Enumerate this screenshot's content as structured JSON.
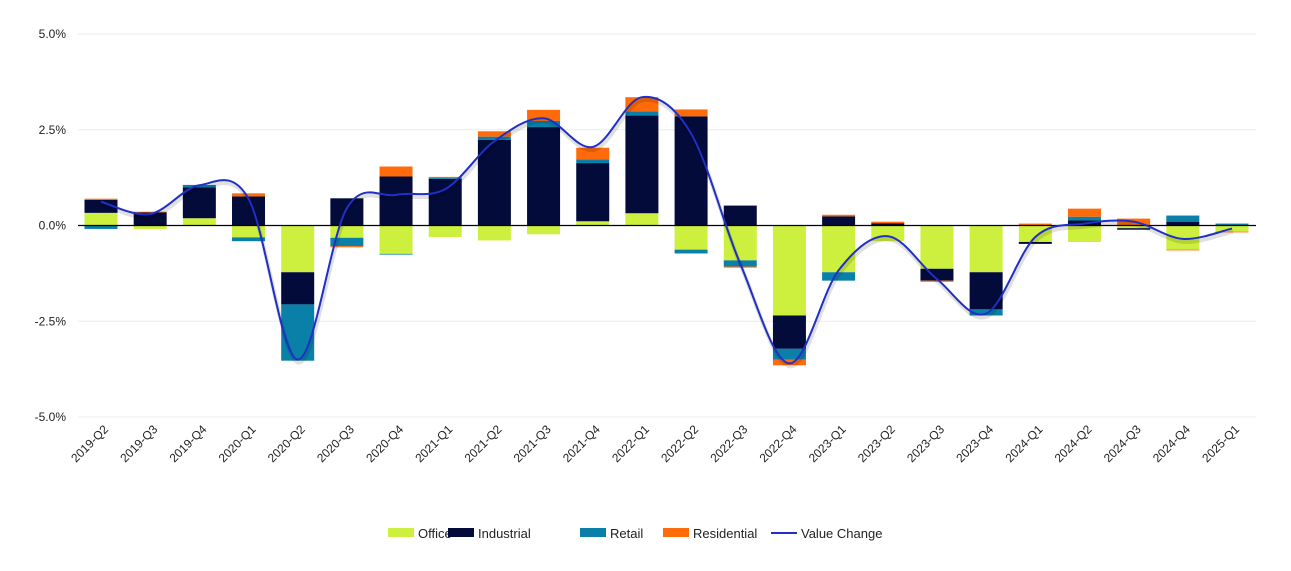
{
  "chart_data": {
    "type": "bar",
    "stacked": true,
    "title": "",
    "xlabel": "",
    "ylabel": "",
    "ylim": [
      -5.0,
      5.0
    ],
    "yticks": [
      "5.0%",
      "2.5%",
      "0.0%",
      "-2.5%",
      "-5.0%"
    ],
    "ytick_values": [
      5.0,
      2.5,
      0.0,
      -2.5,
      -5.0
    ],
    "grid": true,
    "legend_position": "bottom",
    "categories": [
      "2019-Q2",
      "2019-Q3",
      "2019-Q4",
      "2020-Q1",
      "2020-Q2",
      "2020-Q3",
      "2020-Q4",
      "2021-Q1",
      "2021-Q2",
      "2021-Q3",
      "2021-Q4",
      "2022-Q1",
      "2022-Q2",
      "2022-Q3",
      "2022-Q4",
      "2023-Q1",
      "2023-Q2",
      "2023-Q3",
      "2023-Q4",
      "2024-Q1",
      "2024-Q2",
      "2024-Q3",
      "2024-Q4",
      "2025-Q1"
    ],
    "series": [
      {
        "name": "Office",
        "type": "bar",
        "color": "#cdf03f",
        "values": [
          0.33,
          -0.09,
          0.19,
          -0.31,
          -1.22,
          -0.32,
          -0.74,
          -0.3,
          -0.39,
          -0.23,
          0.11,
          0.32,
          -0.63,
          -0.91,
          -2.35,
          -1.22,
          -0.41,
          -1.13,
          -1.22,
          -0.43,
          -0.43,
          -0.07,
          -0.63,
          -0.16
        ]
      },
      {
        "name": "Industrial",
        "type": "bar",
        "color": "#020b3a",
        "values": [
          0.34,
          0.34,
          0.81,
          0.76,
          -0.84,
          0.71,
          1.28,
          1.22,
          2.24,
          2.57,
          1.52,
          2.55,
          2.85,
          0.52,
          -0.87,
          0.24,
          0.06,
          -0.31,
          -0.97,
          -0.05,
          0.13,
          -0.04,
          0.1,
          0.0
        ]
      },
      {
        "name": "Retail",
        "type": "bar",
        "color": "#0a80a8",
        "values": [
          -0.09,
          0.0,
          0.06,
          -0.1,
          -1.47,
          -0.22,
          -0.02,
          0.03,
          0.08,
          0.16,
          0.1,
          0.11,
          -0.1,
          -0.16,
          -0.28,
          -0.22,
          0.0,
          0.0,
          -0.16,
          0.0,
          0.1,
          0.0,
          0.16,
          0.05
        ]
      },
      {
        "name": "Residential",
        "type": "bar",
        "color": "#ff6a0a",
        "values": [
          0.03,
          0.02,
          0.0,
          0.08,
          0.0,
          -0.03,
          0.26,
          0.02,
          0.14,
          0.29,
          0.3,
          0.37,
          0.18,
          -0.03,
          -0.15,
          0.04,
          0.04,
          -0.03,
          0.0,
          0.05,
          0.21,
          0.18,
          -0.02,
          -0.02
        ]
      },
      {
        "name": "Value Change",
        "type": "line",
        "color": "#1f2fc8",
        "values": [
          0.62,
          0.3,
          1.05,
          0.7,
          -3.5,
          0.45,
          0.8,
          0.95,
          2.2,
          2.8,
          2.05,
          3.35,
          2.4,
          -1.0,
          -3.6,
          -1.17,
          -0.28,
          -1.4,
          -2.3,
          -0.3,
          0.05,
          0.1,
          -0.35,
          -0.08
        ]
      }
    ]
  }
}
